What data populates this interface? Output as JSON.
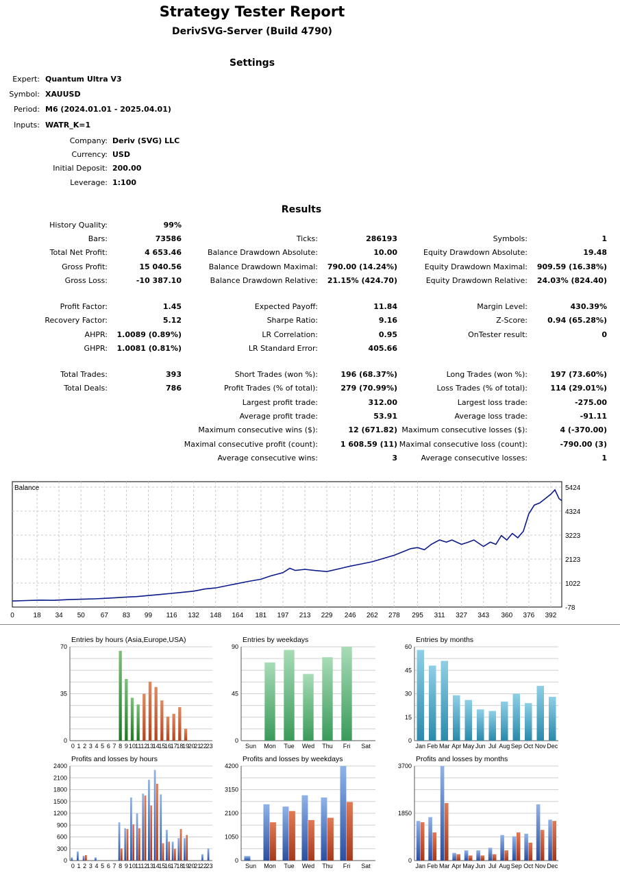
{
  "header": {
    "title": "Strategy Tester Report",
    "server": "DerivSVG-Server (Build 4790)"
  },
  "settings": {
    "section_title": "Settings",
    "expert_label": "Expert:",
    "expert": "Quantum Ultra V3",
    "symbol_label": "Symbol:",
    "symbol": "XAUUSD",
    "period_label": "Period:",
    "period": "M6 (2024.01.01 - 2025.04.01)",
    "inputs_label": "Inputs:",
    "inputs": "WATR_K=1",
    "company_label": "Company:",
    "company": "Deriv (SVG) LLC",
    "currency_label": "Currency:",
    "currency": "USD",
    "deposit_label": "Initial Deposit:",
    "deposit": "200.00",
    "leverage_label": "Leverage:",
    "leverage": "1:100"
  },
  "results": {
    "section_title": "Results",
    "rows": [
      [
        [
          "History Quality:",
          "99%"
        ],
        null,
        null
      ],
      [
        [
          "Bars:",
          "73586"
        ],
        [
          "Ticks:",
          "286193"
        ],
        [
          "Symbols:",
          "1"
        ]
      ],
      [
        [
          "Total Net Profit:",
          "4 653.46"
        ],
        [
          "Balance Drawdown Absolute:",
          "10.00"
        ],
        [
          "Equity Drawdown Absolute:",
          "19.48"
        ]
      ],
      [
        [
          "Gross Profit:",
          "15 040.56"
        ],
        [
          "Balance Drawdown Maximal:",
          "790.00 (14.24%)"
        ],
        [
          "Equity Drawdown Maximal:",
          "909.59 (16.38%)"
        ]
      ],
      [
        [
          "Gross Loss:",
          "-10 387.10"
        ],
        [
          "Balance Drawdown Relative:",
          "21.15% (424.70)"
        ],
        [
          "Equity Drawdown Relative:",
          "24.03% (824.40)"
        ]
      ],
      [
        [
          "Profit Factor:",
          "1.45"
        ],
        [
          "Expected Payoff:",
          "11.84"
        ],
        [
          "Margin Level:",
          "430.39%"
        ]
      ],
      [
        [
          "Recovery Factor:",
          "5.12"
        ],
        [
          "Sharpe Ratio:",
          "9.16"
        ],
        [
          "Z-Score:",
          "0.94 (65.28%)"
        ]
      ],
      [
        [
          "AHPR:",
          "1.0089 (0.89%)"
        ],
        [
          "LR Correlation:",
          "0.95"
        ],
        [
          "OnTester result:",
          "0"
        ]
      ],
      [
        [
          "GHPR:",
          "1.0081 (0.81%)"
        ],
        [
          "LR Standard Error:",
          "405.66"
        ],
        null
      ],
      [
        [
          "Total Trades:",
          "393"
        ],
        [
          "Short Trades (won %):",
          "196 (68.37%)"
        ],
        [
          "Long Trades (won %):",
          "197 (73.60%)"
        ]
      ],
      [
        [
          "Total Deals:",
          "786"
        ],
        [
          "Profit Trades (% of total):",
          "279 (70.99%)"
        ],
        [
          "Loss Trades (% of total):",
          "114 (29.01%)"
        ]
      ],
      [
        null,
        [
          "Largest profit trade:",
          "312.00"
        ],
        [
          "Largest loss trade:",
          "-275.00"
        ]
      ],
      [
        null,
        [
          "Average profit trade:",
          "53.91"
        ],
        [
          "Average loss trade:",
          "-91.11"
        ]
      ],
      [
        null,
        [
          "Maximum consecutive wins ($):",
          "12 (671.82)"
        ],
        [
          "Maximum consecutive losses ($):",
          "4 (-370.00)"
        ]
      ],
      [
        null,
        [
          "Maximal consecutive profit (count):",
          "1 608.59 (11)"
        ],
        [
          "Maximal consecutive loss (count):",
          "-790.00 (3)"
        ]
      ],
      [
        null,
        [
          "Average consecutive wins:",
          "3"
        ],
        [
          "Average consecutive losses:",
          "1"
        ]
      ]
    ]
  },
  "chart_data": [
    {
      "type": "line",
      "title": "Balance",
      "x_ticks": [
        "0",
        "18",
        "34",
        "50",
        "67",
        "83",
        "99",
        "116",
        "132",
        "148",
        "164",
        "181",
        "197",
        "213",
        "229",
        "246",
        "262",
        "278",
        "295",
        "311",
        "327",
        "343",
        "360",
        "376",
        "392"
      ],
      "y_ticks": [
        "5424",
        "4324",
        "3223",
        "2123",
        "1022",
        "-78"
      ],
      "ylim": [
        -78,
        5424
      ],
      "xlim": [
        0,
        400
      ],
      "series": [
        {
          "x": [
            0,
            10,
            20,
            30,
            40,
            50,
            60,
            67,
            75,
            83,
            90,
            99,
            108,
            116,
            124,
            132,
            140,
            148,
            156,
            164,
            172,
            181,
            188,
            197,
            202,
            206,
            213,
            220,
            229,
            236,
            246,
            254,
            262,
            270,
            278,
            284,
            290,
            295,
            300,
            305,
            311,
            316,
            320,
            327,
            332,
            336,
            343,
            348,
            352,
            356,
            360,
            364,
            368,
            372,
            376,
            380,
            384,
            388,
            392,
            395,
            398,
            400
          ],
          "y": [
            200,
            220,
            240,
            230,
            260,
            280,
            300,
            320,
            350,
            380,
            400,
            450,
            500,
            550,
            600,
            650,
            750,
            800,
            900,
            1000,
            1100,
            1200,
            1350,
            1500,
            1700,
            1600,
            1650,
            1600,
            1550,
            1650,
            1800,
            1900,
            2000,
            2150,
            2300,
            2450,
            2600,
            2650,
            2550,
            2800,
            3000,
            2900,
            3000,
            2800,
            2900,
            3000,
            2700,
            2900,
            2800,
            3200,
            3000,
            3300,
            3100,
            3400,
            4200,
            4600,
            4700,
            4900,
            5100,
            5300,
            4900,
            4800
          ]
        }
      ]
    },
    {
      "type": "bar",
      "title": "Entries by hours (Asia,Europe,USA)",
      "categories": [
        "0",
        "1",
        "2",
        "3",
        "4",
        "5",
        "6",
        "7",
        "8",
        "9",
        "10",
        "11",
        "12",
        "13",
        "14",
        "15",
        "16",
        "17",
        "18",
        "19",
        "20",
        "21",
        "22",
        "23"
      ],
      "values": [
        0,
        0,
        0,
        0,
        0,
        0,
        0,
        0,
        67,
        46,
        32,
        27,
        35,
        44,
        40,
        30,
        18,
        20,
        25,
        9,
        0,
        0,
        0,
        0
      ],
      "ylim": [
        0,
        70
      ],
      "y_ticks": [
        "70",
        "35",
        "0"
      ],
      "colors": [
        "#1e7a1e",
        "#1e7a1e",
        "#1e7a1e",
        "#1e7a1e",
        "#1e7a1e",
        "#1e7a1e",
        "#1e7a1e",
        "#1e7a1e",
        "#1e7a1e",
        "#1e7a1e",
        "#1e7a1e",
        "#1e7a1e",
        "#b5441c",
        "#b5441c",
        "#b5441c",
        "#b5441c",
        "#b5441c",
        "#b5441c",
        "#b5441c",
        "#b5441c",
        "#b5441c",
        "#b5441c",
        "#b5441c",
        "#b5441c"
      ]
    },
    {
      "type": "bar",
      "title": "Entries by weekdays",
      "categories": [
        "Sun",
        "Mon",
        "Tue",
        "Wed",
        "Thu",
        "Fri",
        "Sat"
      ],
      "values": [
        0,
        75,
        87,
        64,
        80,
        90,
        0
      ],
      "ylim": [
        0,
        90
      ],
      "y_ticks": [
        "90",
        "45",
        "0"
      ],
      "color": "#3a9a5a"
    },
    {
      "type": "bar",
      "title": "Entries by months",
      "categories": [
        "Jan",
        "Feb",
        "Mar",
        "Apr",
        "May",
        "Jun",
        "Jul",
        "Aug",
        "Sep",
        "Oct",
        "Nov",
        "Dec"
      ],
      "values": [
        58,
        48,
        51,
        29,
        26,
        20,
        19,
        25,
        30,
        24,
        35,
        28
      ],
      "ylim": [
        0,
        60
      ],
      "y_ticks": [
        "60",
        "45",
        "30",
        "15",
        "0"
      ],
      "color": "#2a8aab"
    },
    {
      "type": "bar",
      "title": "Profits and losses by hours",
      "categories": [
        "0",
        "1",
        "2",
        "3",
        "4",
        "5",
        "6",
        "7",
        "8",
        "9",
        "10",
        "11",
        "12",
        "13",
        "14",
        "15",
        "16",
        "17",
        "18",
        "19",
        "20",
        "21",
        "22",
        "23"
      ],
      "series": [
        {
          "values": [
            80,
            230,
            120,
            0,
            80,
            0,
            0,
            0,
            970,
            820,
            1600,
            1200,
            1700,
            2050,
            2300,
            1680,
            780,
            480,
            570,
            570,
            0,
            0,
            160,
            310
          ]
        },
        {
          "values": [
            0,
            0,
            140,
            0,
            0,
            0,
            0,
            0,
            310,
            800,
            920,
            820,
            1650,
            1400,
            1950,
            440,
            480,
            300,
            800,
            650,
            0,
            0,
            0,
            0
          ]
        }
      ],
      "ylim": [
        0,
        2400
      ],
      "y_ticks": [
        "2400",
        "2100",
        "1800",
        "1500",
        "1200",
        "900",
        "600",
        "300",
        "0"
      ]
    },
    {
      "type": "bar",
      "title": "Profits and losses by weekdays",
      "categories": [
        "Sun",
        "Mon",
        "Tue",
        "Wed",
        "Thu",
        "Fri",
        "Sat"
      ],
      "series": [
        {
          "values": [
            200,
            2500,
            2400,
            2900,
            2800,
            4200,
            0
          ]
        },
        {
          "values": [
            0,
            1700,
            2200,
            1800,
            1900,
            2600,
            0
          ]
        }
      ],
      "ylim": [
        0,
        4200
      ],
      "y_ticks": [
        "4200",
        "3150",
        "2100",
        "1050",
        "0"
      ]
    },
    {
      "type": "bar",
      "title": "Profits and losses by months",
      "categories": [
        "Jan",
        "Feb",
        "Mar",
        "Apr",
        "May",
        "Jun",
        "Jul",
        "Aug",
        "Sep",
        "Oct",
        "Nov",
        "Dec"
      ],
      "series": [
        {
          "values": [
            1550,
            1700,
            3700,
            300,
            400,
            400,
            500,
            1000,
            950,
            1050,
            2200,
            1600
          ]
        },
        {
          "values": [
            1500,
            1100,
            2250,
            250,
            200,
            200,
            250,
            400,
            1100,
            700,
            1200,
            1550
          ]
        }
      ],
      "ylim": [
        0,
        3700
      ],
      "y_ticks": [
        "3700",
        "1850",
        "0"
      ]
    }
  ],
  "colors": {
    "profit": "#3e62b0",
    "loss": "#b9452a",
    "balance": "#0a1a8a",
    "grid": "#c8c8c8"
  }
}
